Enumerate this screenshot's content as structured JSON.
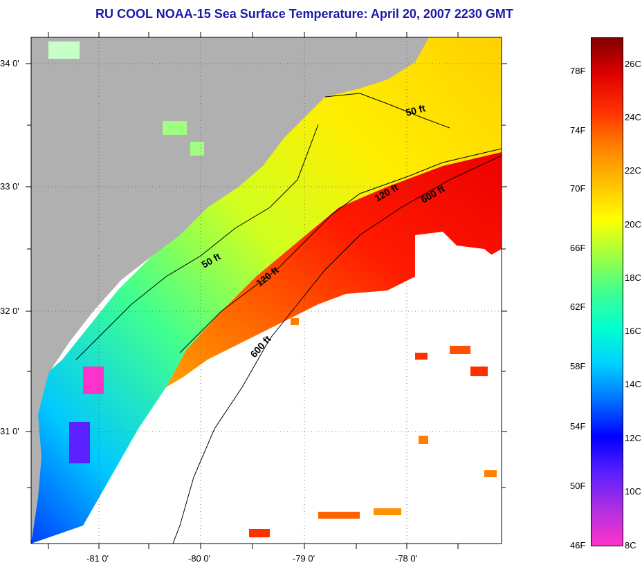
{
  "title": "RU COOL  NOAA-15  Sea Surface Temperature:  April 20, 2007 2230 GMT",
  "map": {
    "lat_labels": [
      "34 0'",
      "33 0'",
      "32 0'",
      "31 0'"
    ],
    "lon_labels": [
      "-81 0'",
      "-80 0'",
      "-79 0'",
      "-78 0'"
    ],
    "contour_labels": [
      "50 ft",
      "120 ft",
      "600 ft",
      "50 ft",
      "120 ft",
      "600 ft"
    ],
    "land_color": "#b0b0b0",
    "no_data_color": "#ffffff"
  },
  "colorbar": {
    "fahrenheit_labels": [
      "78F",
      "74F",
      "70F",
      "66F",
      "62F",
      "58F",
      "54F",
      "50F",
      "46F"
    ],
    "celsius_labels": [
      "26C",
      "24C",
      "22C",
      "20C",
      "18C",
      "16C",
      "14C",
      "12C",
      "10C",
      "8C"
    ],
    "colors": [
      "#ff33cc",
      "#b030e0",
      "#5a20ff",
      "#0000ff",
      "#0070ff",
      "#00d0ff",
      "#00ffd0",
      "#40ff90",
      "#a0ff40",
      "#ffff00",
      "#ffc000",
      "#ff8000",
      "#ff3000",
      "#e00000",
      "#800000"
    ]
  }
}
